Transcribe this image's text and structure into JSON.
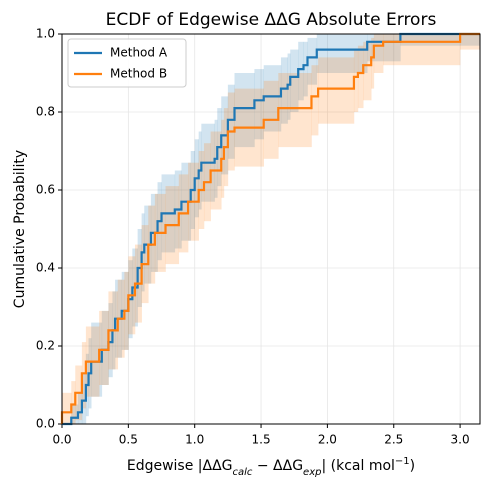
{
  "chart_data": {
    "type": "ecdf",
    "title": "ECDF of Edgewise ΔΔG Absolute Errors",
    "xlabel": [
      "Edgewise |ΔΔG",
      "calc",
      " − ΔΔG",
      "exp",
      "| (kcal mol",
      "−1",
      ")"
    ],
    "ylabel": "Cumulative Probability",
    "xlim": [
      0,
      3.15
    ],
    "ylim": [
      0,
      1
    ],
    "xticks": [
      {
        "value": 0,
        "label": "0.0"
      },
      0.5,
      {
        "value": 1,
        "label": "1.0"
      },
      1.5,
      {
        "value": 2,
        "label": "2.0"
      },
      2.5,
      {
        "value": 3,
        "label": "3.0"
      }
    ],
    "yticks": [
      {
        "value": 0,
        "label": "0.0"
      },
      0.2,
      0.4,
      0.6,
      0.8,
      {
        "value": 1,
        "label": "1.0"
      }
    ],
    "grid": true,
    "legend": "upper-left",
    "series": [
      {
        "name": "Method A",
        "color": "#1f77b4",
        "x": [
          0.07,
          0.12,
          0.15,
          0.18,
          0.2,
          0.22,
          0.3,
          0.35,
          0.38,
          0.4,
          0.45,
          0.5,
          0.53,
          0.57,
          0.6,
          0.62,
          0.67,
          0.72,
          0.75,
          0.85,
          0.9,
          0.97,
          1.0,
          1.03,
          1.05,
          1.15,
          1.17,
          1.2,
          1.25,
          1.3,
          1.45,
          1.52,
          1.65,
          1.7,
          1.72,
          1.78,
          1.82,
          1.85,
          1.92,
          2.3,
          2.55
        ],
        "values": [
          0.016,
          0.03,
          0.06,
          0.1,
          0.13,
          0.16,
          0.19,
          0.21,
          0.24,
          0.27,
          0.29,
          0.32,
          0.35,
          0.4,
          0.44,
          0.46,
          0.49,
          0.52,
          0.54,
          0.55,
          0.57,
          0.6,
          0.63,
          0.65,
          0.67,
          0.68,
          0.71,
          0.74,
          0.78,
          0.81,
          0.83,
          0.84,
          0.86,
          0.87,
          0.89,
          0.91,
          0.92,
          0.94,
          0.96,
          0.98,
          1.0
        ],
        "lower": [
          0,
          0,
          0,
          0.02,
          0.04,
          0.07,
          0.1,
          0.12,
          0.14,
          0.17,
          0.19,
          0.22,
          0.25,
          0.3,
          0.34,
          0.36,
          0.39,
          0.42,
          0.44,
          0.45,
          0.47,
          0.5,
          0.53,
          0.55,
          0.57,
          0.58,
          0.61,
          0.64,
          0.68,
          0.71,
          0.73,
          0.75,
          0.77,
          0.78,
          0.8,
          0.83,
          0.84,
          0.87,
          0.9,
          0.93,
          0.97
        ],
        "upper": [
          0.05,
          0.08,
          0.13,
          0.18,
          0.22,
          0.26,
          0.29,
          0.31,
          0.34,
          0.37,
          0.39,
          0.42,
          0.45,
          0.5,
          0.54,
          0.56,
          0.59,
          0.62,
          0.64,
          0.65,
          0.67,
          0.7,
          0.73,
          0.75,
          0.77,
          0.78,
          0.81,
          0.84,
          0.87,
          0.9,
          0.91,
          0.92,
          0.94,
          0.95,
          0.96,
          0.98,
          0.98,
          0.99,
          1,
          1,
          1
        ]
      },
      {
        "name": "Method B",
        "color": "#ff7f0e",
        "x": [
          0.0,
          0.07,
          0.1,
          0.15,
          0.18,
          0.28,
          0.35,
          0.42,
          0.47,
          0.5,
          0.55,
          0.6,
          0.65,
          0.7,
          0.78,
          0.88,
          0.95,
          1.03,
          1.07,
          1.12,
          1.2,
          1.22,
          1.25,
          1.3,
          1.52,
          1.63,
          1.88,
          1.93,
          2.2,
          2.23,
          2.27,
          2.33,
          2.35,
          2.42,
          3.0
        ],
        "values": [
          0.03,
          0.05,
          0.08,
          0.13,
          0.16,
          0.19,
          0.24,
          0.27,
          0.29,
          0.33,
          0.36,
          0.41,
          0.46,
          0.49,
          0.51,
          0.54,
          0.57,
          0.6,
          0.62,
          0.65,
          0.68,
          0.71,
          0.75,
          0.76,
          0.78,
          0.81,
          0.84,
          0.86,
          0.89,
          0.9,
          0.92,
          0.94,
          0.97,
          0.98,
          1.0
        ],
        "lower": [
          0,
          0,
          0.01,
          0.04,
          0.07,
          0.1,
          0.14,
          0.17,
          0.19,
          0.23,
          0.26,
          0.31,
          0.36,
          0.39,
          0.41,
          0.44,
          0.47,
          0.5,
          0.52,
          0.55,
          0.58,
          0.61,
          0.65,
          0.66,
          0.68,
          0.71,
          0.74,
          0.77,
          0.8,
          0.81,
          0.83,
          0.86,
          0.9,
          0.92,
          0.96
        ],
        "upper": [
          0.08,
          0.11,
          0.15,
          0.21,
          0.25,
          0.29,
          0.34,
          0.37,
          0.39,
          0.43,
          0.46,
          0.51,
          0.56,
          0.59,
          0.61,
          0.64,
          0.67,
          0.7,
          0.72,
          0.75,
          0.78,
          0.81,
          0.85,
          0.86,
          0.88,
          0.9,
          0.92,
          0.94,
          0.96,
          0.97,
          0.98,
          0.99,
          1,
          1,
          1
        ]
      }
    ]
  }
}
